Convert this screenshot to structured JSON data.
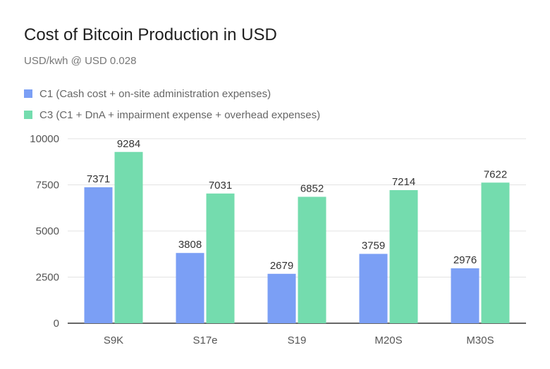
{
  "chart_data": {
    "type": "bar",
    "title": "Cost of Bitcoin Production in USD",
    "subtitle": "USD/kwh @ USD 0.028",
    "categories": [
      "S9K",
      "S17e",
      "S19",
      "M20S",
      "M30S"
    ],
    "series": [
      {
        "name": "C1 (Cash cost + on-site administration expenses)",
        "color": "#7b9ff5",
        "values": [
          7371,
          3808,
          2679,
          3759,
          2976
        ]
      },
      {
        "name": "C3  (C1 + DnA + impairment expense + overhead expenses)",
        "color": "#74dcae",
        "values": [
          9284,
          7031,
          6852,
          7214,
          7622
        ]
      }
    ],
    "yticks": [
      0,
      2500,
      5000,
      7500,
      10000
    ],
    "ylim": [
      0,
      10000
    ],
    "grid": true,
    "legend_position": "top-left"
  }
}
